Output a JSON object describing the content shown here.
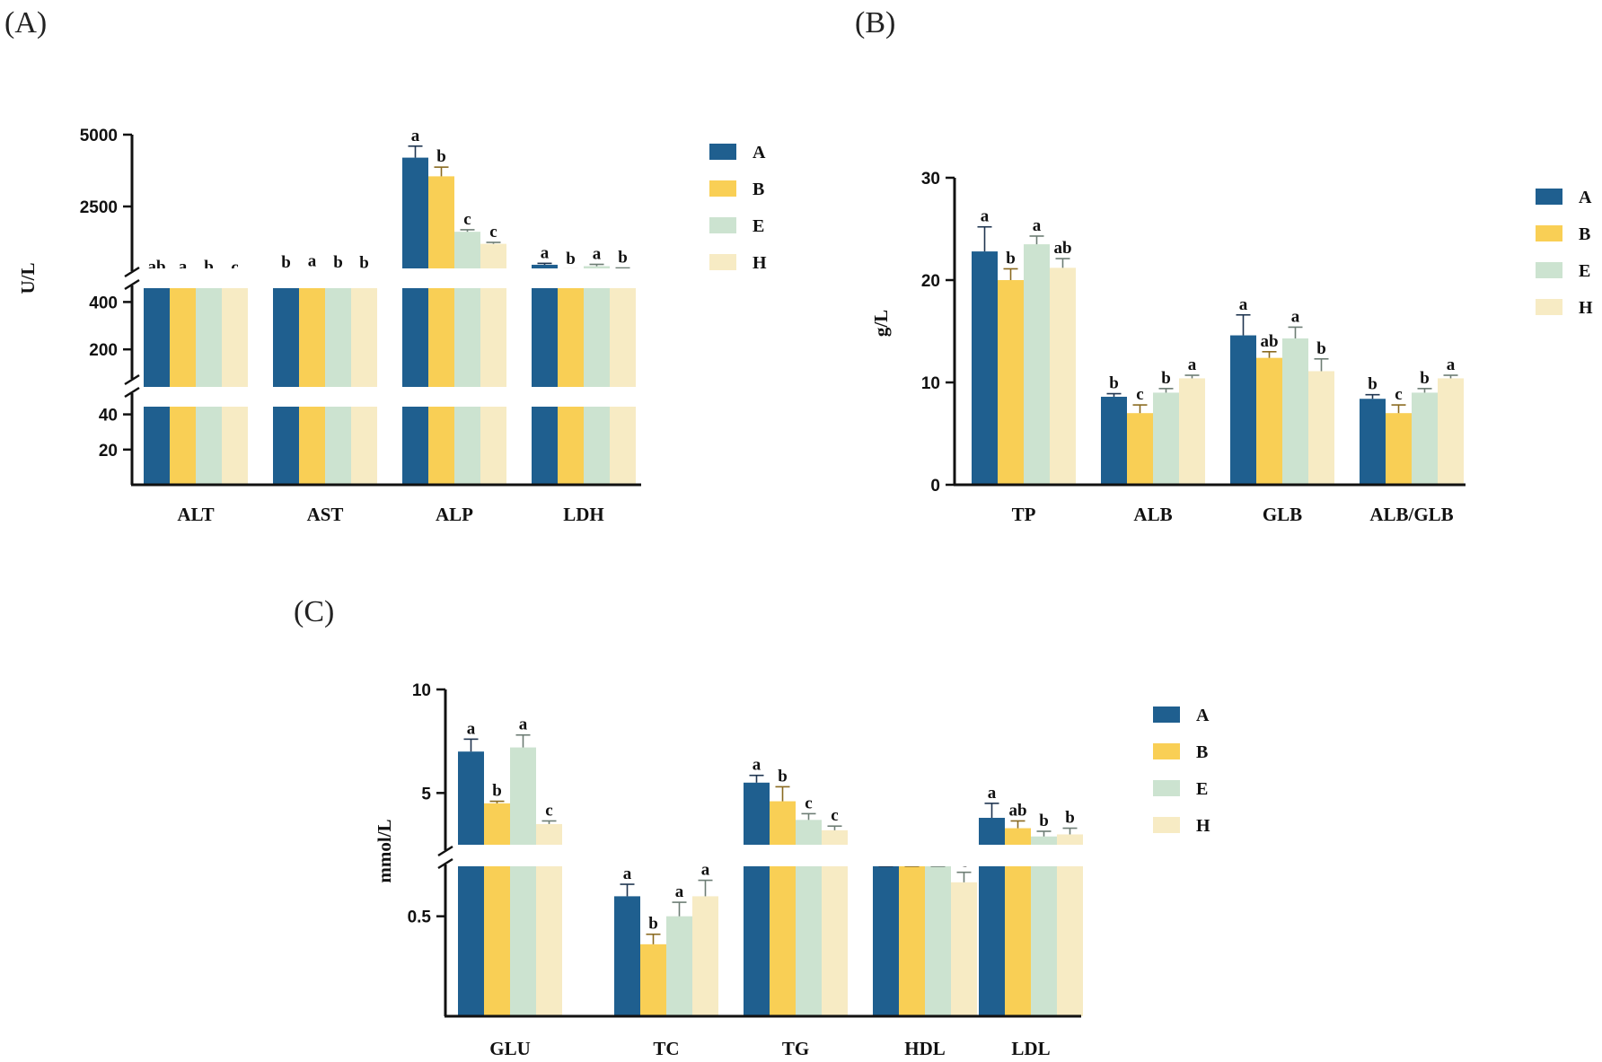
{
  "colors": {
    "A": "#1f5f8f",
    "B": "#f9cf55",
    "E": "#cce3d0",
    "H": "#f7ebc4"
  },
  "chart_data": [
    {
      "panel": "(A)",
      "type": "bar",
      "ylabel": "U/L",
      "categories": [
        "ALT",
        "AST",
        "ALP",
        "LDH"
      ],
      "legend": [
        "A",
        "B",
        "E",
        "H"
      ],
      "broken_axis": true,
      "ytick_labels": [
        "20",
        "40",
        "200",
        "400",
        "2500",
        "5000"
      ],
      "series": [
        {
          "name": "A",
          "values": [
            33,
            180,
            4200,
            470
          ],
          "errors": [
            2,
            8,
            400,
            50
          ],
          "letters": [
            "ab",
            "b",
            "a",
            "a"
          ]
        },
        {
          "name": "B",
          "values": [
            36,
            215,
            3550,
            295
          ],
          "errors": [
            3,
            25,
            320,
            25
          ],
          "letters": [
            "a",
            "a",
            "b",
            "b"
          ]
        },
        {
          "name": "E",
          "values": [
            29,
            178,
            1620,
            420
          ],
          "errors": [
            3,
            5,
            70,
            65
          ],
          "letters": [
            "b",
            "b",
            "c",
            "a"
          ]
        },
        {
          "name": "H",
          "values": [
            12,
            166,
            1200,
            320
          ],
          "errors": [
            2,
            5,
            50,
            40
          ],
          "letters": [
            "c",
            "b",
            "c",
            "b"
          ]
        }
      ]
    },
    {
      "panel": "(B)",
      "type": "bar",
      "ylabel": "g/L",
      "categories": [
        "TP",
        "ALB",
        "GLB",
        "ALB/GLB"
      ],
      "legend": [
        "A",
        "B",
        "E",
        "H"
      ],
      "ylim": [
        0,
        30
      ],
      "ytick_labels": [
        "0",
        "10",
        "20",
        "30"
      ],
      "series": [
        {
          "name": "A",
          "values": [
            22.8,
            8.6,
            14.6,
            8.4
          ],
          "errors": [
            2.4,
            0.3,
            2.0,
            0.4
          ],
          "letters": [
            "a",
            "b",
            "a",
            "b"
          ]
        },
        {
          "name": "B",
          "values": [
            20.0,
            7.0,
            12.4,
            7.0
          ],
          "errors": [
            1.1,
            0.8,
            0.6,
            0.8
          ],
          "letters": [
            "b",
            "c",
            "ab",
            "c"
          ]
        },
        {
          "name": "E",
          "values": [
            23.5,
            9.0,
            14.3,
            9.0
          ],
          "errors": [
            0.8,
            0.4,
            1.1,
            0.4
          ],
          "letters": [
            "a",
            "b",
            "a",
            "b"
          ]
        },
        {
          "name": "H",
          "values": [
            21.2,
            10.4,
            11.1,
            10.4
          ],
          "errors": [
            0.9,
            0.3,
            1.2,
            0.3
          ],
          "letters": [
            "ab",
            "a",
            "b",
            "a"
          ]
        }
      ]
    },
    {
      "panel": "(C)",
      "type": "bar",
      "ylabel": "mmol/L",
      "categories": [
        "GLU",
        "TC",
        "TG",
        "HDL",
        "LDL"
      ],
      "legend": [
        "A",
        "B",
        "E",
        "H"
      ],
      "broken_axis": true,
      "ytick_labels": [
        "0.5",
        "5",
        "10"
      ],
      "series": [
        {
          "name": "A",
          "values": [
            7.0,
            0.6,
            5.5,
            1.2,
            3.8
          ],
          "errors": [
            0.6,
            0.06,
            0.35,
            0.15,
            0.7
          ],
          "letters": [
            "a",
            "a",
            "a",
            "b",
            "a"
          ]
        },
        {
          "name": "B",
          "values": [
            4.5,
            0.36,
            4.6,
            1.2,
            3.3
          ],
          "errors": [
            0.1,
            0.05,
            0.7,
            0.1,
            0.35
          ],
          "letters": [
            "b",
            "b",
            "b",
            "b",
            "ab"
          ]
        },
        {
          "name": "E",
          "values": [
            7.2,
            0.5,
            3.7,
            1.7,
            2.9
          ],
          "errors": [
            0.6,
            0.07,
            0.3,
            0.15,
            0.25
          ],
          "letters": [
            "a",
            "a",
            "c",
            "a",
            "b"
          ]
        },
        {
          "name": "H",
          "values": [
            3.5,
            0.6,
            3.2,
            0.67,
            3.0
          ],
          "errors": [
            0.15,
            0.08,
            0.2,
            0.05,
            0.3
          ],
          "letters": [
            "c",
            "a",
            "c",
            "c",
            "b"
          ]
        }
      ]
    }
  ]
}
